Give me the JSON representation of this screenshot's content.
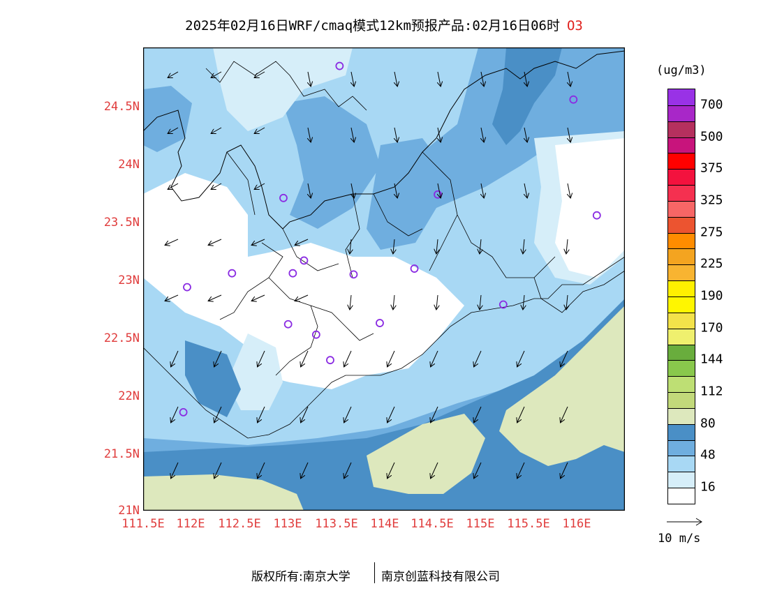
{
  "title": {
    "text": "2025年02月16日WRF/cmaq模式12km预报产品:02月16日06时",
    "pollutant": "O3"
  },
  "map": {
    "lat_ticks": [
      "24.5N",
      "24N",
      "23.5N",
      "23N",
      "22.5N",
      "22N",
      "21.5N",
      "21N"
    ],
    "lon_ticks": [
      "111.5E",
      "112E",
      "112.5E",
      "113E",
      "113.5E",
      "114E",
      "114.5E",
      "115E",
      "115.5E",
      "116E"
    ],
    "lon_range": [
      111.5,
      116.65
    ],
    "lat_range": [
      21.0,
      25.0
    ],
    "stations": [
      {
        "lon": 113.6,
        "lat": 24.84
      },
      {
        "lon": 116.1,
        "lat": 24.55
      },
      {
        "lon": 113.0,
        "lat": 23.7
      },
      {
        "lon": 114.65,
        "lat": 23.73
      },
      {
        "lon": 116.35,
        "lat": 23.55
      },
      {
        "lon": 113.22,
        "lat": 23.16
      },
      {
        "lon": 112.45,
        "lat": 23.05
      },
      {
        "lon": 113.1,
        "lat": 23.05
      },
      {
        "lon": 113.75,
        "lat": 23.04
      },
      {
        "lon": 114.4,
        "lat": 23.09
      },
      {
        "lon": 111.97,
        "lat": 22.93
      },
      {
        "lon": 115.35,
        "lat": 22.78
      },
      {
        "lon": 113.05,
        "lat": 22.61
      },
      {
        "lon": 113.35,
        "lat": 22.52
      },
      {
        "lon": 114.03,
        "lat": 22.62
      },
      {
        "lon": 113.5,
        "lat": 22.3
      },
      {
        "lon": 111.93,
        "lat": 21.85
      }
    ],
    "station_color": "#8a2be2",
    "fill_colors": {
      "c16": "#ffffff",
      "c32": "#d6eef9",
      "c48": "#a8d8f4",
      "c64": "#6faedf",
      "c80": "#4a8fc6",
      "c96": "#dde8bd"
    }
  },
  "colorbar": {
    "unit": "(ug/m3)",
    "colors": [
      "#9932e6",
      "#a827c8",
      "#b5305e",
      "#c8147c",
      "#ff0000",
      "#f3123e",
      "#f53050",
      "#f76666",
      "#ec5430",
      "#ff8c00",
      "#f4a420",
      "#f8b431",
      "#fff000",
      "#fff600",
      "#f3e24a",
      "#eff06e",
      "#69ad3d",
      "#89c84c",
      "#bedf74",
      "#c2d97a",
      "#dde8bd",
      "#4a8fc6",
      "#6faedf",
      "#a8d8f4",
      "#d6eef9",
      "#ffffff"
    ],
    "labels": [
      {
        "text": "700",
        "index": 1
      },
      {
        "text": "500",
        "index": 3
      },
      {
        "text": "375",
        "index": 5
      },
      {
        "text": "325",
        "index": 7
      },
      {
        "text": "275",
        "index": 9
      },
      {
        "text": "225",
        "index": 11
      },
      {
        "text": "190",
        "index": 13
      },
      {
        "text": "170",
        "index": 15
      },
      {
        "text": "144",
        "index": 17
      },
      {
        "text": "112",
        "index": 19
      },
      {
        "text": "80",
        "index": 21
      },
      {
        "text": "48",
        "index": 23
      },
      {
        "text": "16",
        "index": 25
      }
    ]
  },
  "wind_reference": {
    "label": "10 m/s"
  },
  "footer": {
    "left": "版权所有:南京大学",
    "right": "南京创蓝科技有限公司"
  }
}
